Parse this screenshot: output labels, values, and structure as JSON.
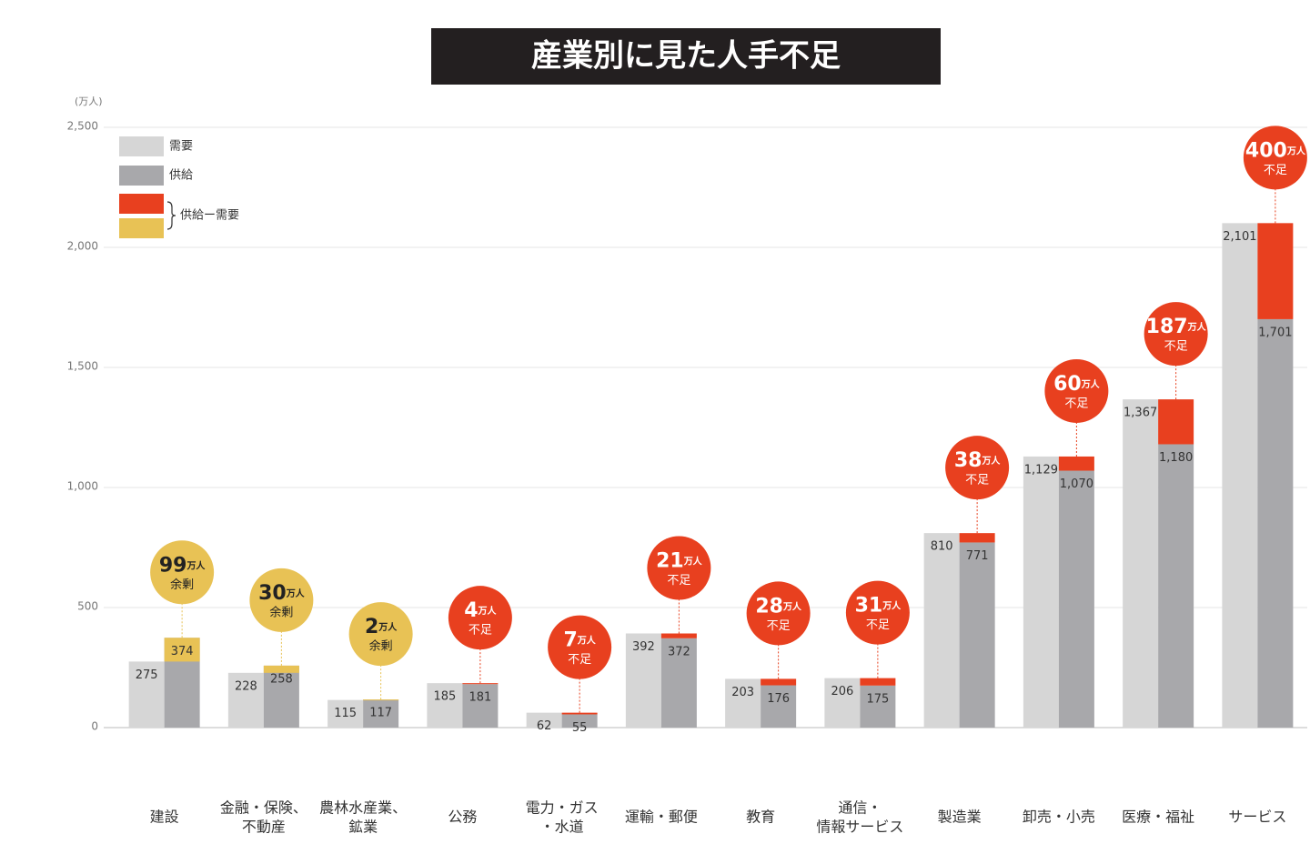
{
  "chart_data": {
    "type": "bar",
    "title": "産業別に見た人手不足",
    "y_unit": "(万人)",
    "categories": [
      "建設",
      "金融・保険、\n不動産",
      "農林水産業、\n鉱業",
      "公務",
      "電力・ガス\n・水道",
      "運輸・郵便",
      "教育",
      "通信・\n情報サービス",
      "製造業",
      "卸売・小売",
      "医療・福祉",
      "サービス"
    ],
    "series": [
      {
        "name": "需要",
        "color": "#d6d6d6",
        "values": [
          275,
          228,
          115,
          185,
          62,
          392,
          203,
          206,
          810,
          1129,
          1367,
          2101
        ],
        "value_labels": [
          "275",
          "228",
          "115",
          "185",
          "62",
          "392",
          "203",
          "206",
          "810",
          "1,129",
          "1,367",
          "2,101"
        ]
      },
      {
        "name": "供給",
        "color": "#a8a8ab",
        "values": [
          374,
          258,
          117,
          181,
          55,
          372,
          176,
          175,
          771,
          1070,
          1180,
          1701
        ],
        "value_labels": [
          "374",
          "258",
          "117",
          "181",
          "55",
          "372",
          "176",
          "175",
          "771",
          "1,070",
          "1,180",
          "1,701"
        ]
      }
    ],
    "gap": {
      "name": "供給ー需要",
      "surplus_color": "#e8c255",
      "shortage_color": "#e8401f",
      "unit": "万人",
      "values": [
        99,
        30,
        2,
        4,
        7,
        21,
        28,
        31,
        38,
        60,
        187,
        400
      ],
      "status": [
        "余剰",
        "余剰",
        "余剰",
        "不足",
        "不足",
        "不足",
        "不足",
        "不足",
        "不足",
        "不足",
        "不足",
        "不足"
      ]
    },
    "ylim": [
      0,
      2500
    ],
    "yticks": [
      0,
      {
        "value": 500,
        "label": "500"
      },
      {
        "value": 1000,
        "label": "1,000"
      },
      {
        "value": 1500,
        "label": "1,500"
      },
      {
        "value": 2000,
        "label": "2,000"
      },
      {
        "value": 2500,
        "label": "2,500"
      }
    ],
    "grid": true
  }
}
